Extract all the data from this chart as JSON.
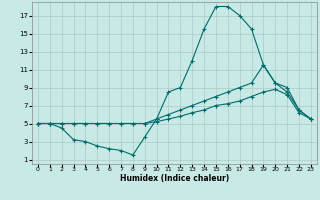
{
  "xlabel": "Humidex (Indice chaleur)",
  "bg_color": "#c8eae6",
  "grid_color": "#b0c8c4",
  "line_color": "#006b6b",
  "xlim": [
    -0.5,
    23.5
  ],
  "ylim": [
    0.5,
    18.5
  ],
  "xticks": [
    0,
    1,
    2,
    3,
    4,
    5,
    6,
    7,
    8,
    9,
    10,
    11,
    12,
    13,
    14,
    15,
    16,
    17,
    18,
    19,
    20,
    21,
    22,
    23
  ],
  "yticks": [
    1,
    3,
    5,
    7,
    9,
    11,
    13,
    15,
    17
  ],
  "line1_x": [
    0,
    1,
    2,
    3,
    4,
    5,
    6,
    7,
    8,
    9,
    10,
    11,
    12,
    13,
    14,
    15,
    16,
    17,
    18,
    19,
    20,
    21,
    22,
    23
  ],
  "line1_y": [
    5,
    5,
    4.5,
    3.2,
    3.0,
    2.5,
    2.2,
    2.0,
    1.5,
    3.5,
    5.5,
    8.5,
    9.0,
    12.0,
    15.5,
    18.0,
    18.0,
    17.0,
    15.5,
    11.5,
    9.5,
    8.5,
    6.5,
    5.5
  ],
  "line2_x": [
    0,
    1,
    2,
    3,
    4,
    5,
    6,
    7,
    8,
    9,
    10,
    11,
    12,
    13,
    14,
    15,
    16,
    17,
    18,
    19,
    20,
    21,
    22,
    23
  ],
  "line2_y": [
    5,
    5,
    5,
    5,
    5,
    5,
    5,
    5,
    5,
    5,
    5.5,
    6.0,
    6.5,
    7.0,
    7.5,
    8.0,
    8.5,
    9.0,
    9.5,
    11.5,
    9.5,
    9.0,
    6.5,
    5.5
  ],
  "line3_x": [
    0,
    1,
    2,
    3,
    4,
    5,
    6,
    7,
    8,
    9,
    10,
    11,
    12,
    13,
    14,
    15,
    16,
    17,
    18,
    19,
    20,
    21,
    22,
    23
  ],
  "line3_y": [
    5,
    5,
    5,
    5,
    5,
    5,
    5,
    5,
    5,
    5,
    5.2,
    5.5,
    5.8,
    6.2,
    6.5,
    7.0,
    7.2,
    7.5,
    8.0,
    8.5,
    8.8,
    8.2,
    6.2,
    5.5
  ]
}
